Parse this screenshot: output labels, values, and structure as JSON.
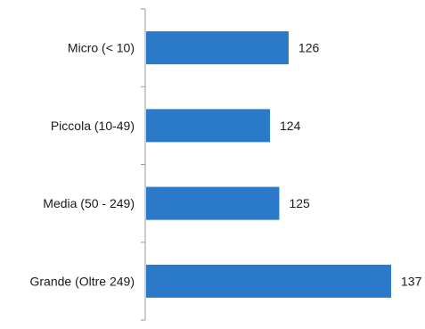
{
  "chart_data": {
    "type": "bar",
    "orientation": "horizontal",
    "categories": [
      "Micro (< 10)",
      "Piccola (10-49)",
      "Media (50 - 249)",
      "Grande (Oltre 249)"
    ],
    "values": [
      126,
      124,
      125,
      137
    ],
    "data_labels": [
      "126",
      "124",
      "125",
      "137"
    ],
    "title": "",
    "xlabel": "",
    "ylabel": "",
    "grid": false,
    "legend": "none",
    "bar_color": "#2a7ac9"
  }
}
